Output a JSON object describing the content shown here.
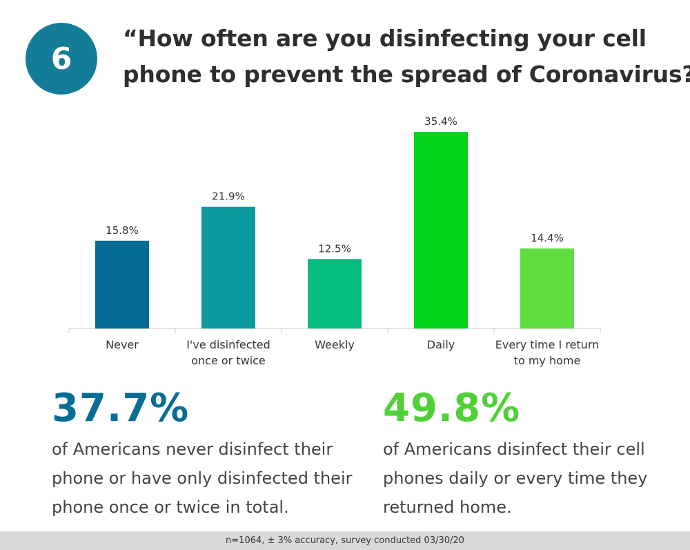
{
  "badge": {
    "number": "6"
  },
  "title": {
    "line1": "“How often are you disinfecting your cell",
    "line2": "phone to prevent the spread of Coronavirus?”"
  },
  "chart_data": {
    "type": "bar",
    "title": "“How often are you disinfecting your cell phone to prevent the spread of Coronavirus?”",
    "categories": [
      [
        "Never"
      ],
      [
        "I've disinfected",
        "once or twice"
      ],
      [
        "Weekly"
      ],
      [
        "Daily"
      ],
      [
        "Every time I return",
        "to my home"
      ]
    ],
    "values": [
      15.8,
      21.9,
      12.5,
      35.4,
      14.4
    ],
    "value_labels": [
      "15.8%",
      "21.9%",
      "12.5%",
      "35.4%",
      "14.4%"
    ],
    "colors": [
      "#046a96",
      "#0b9aa0",
      "#06bd7d",
      "#06d31b",
      "#5edd3e"
    ],
    "ylim": [
      0,
      35.4
    ],
    "grid": false,
    "legend": "none"
  },
  "stats": {
    "left": {
      "value": "37.7%",
      "color": "#066d94",
      "lines": [
        "of Americans never disinfect their",
        "phone or have only disinfected their",
        "phone once or twice in total."
      ]
    },
    "right": {
      "value": "49.8%",
      "color": "#4fd037",
      "lines": [
        "of Americans disinfect their cell",
        "phones daily or every time they",
        "returned home."
      ]
    }
  },
  "footer": {
    "text": "n=1064, ± 3% accuracy, survey conducted 03/30/20"
  }
}
